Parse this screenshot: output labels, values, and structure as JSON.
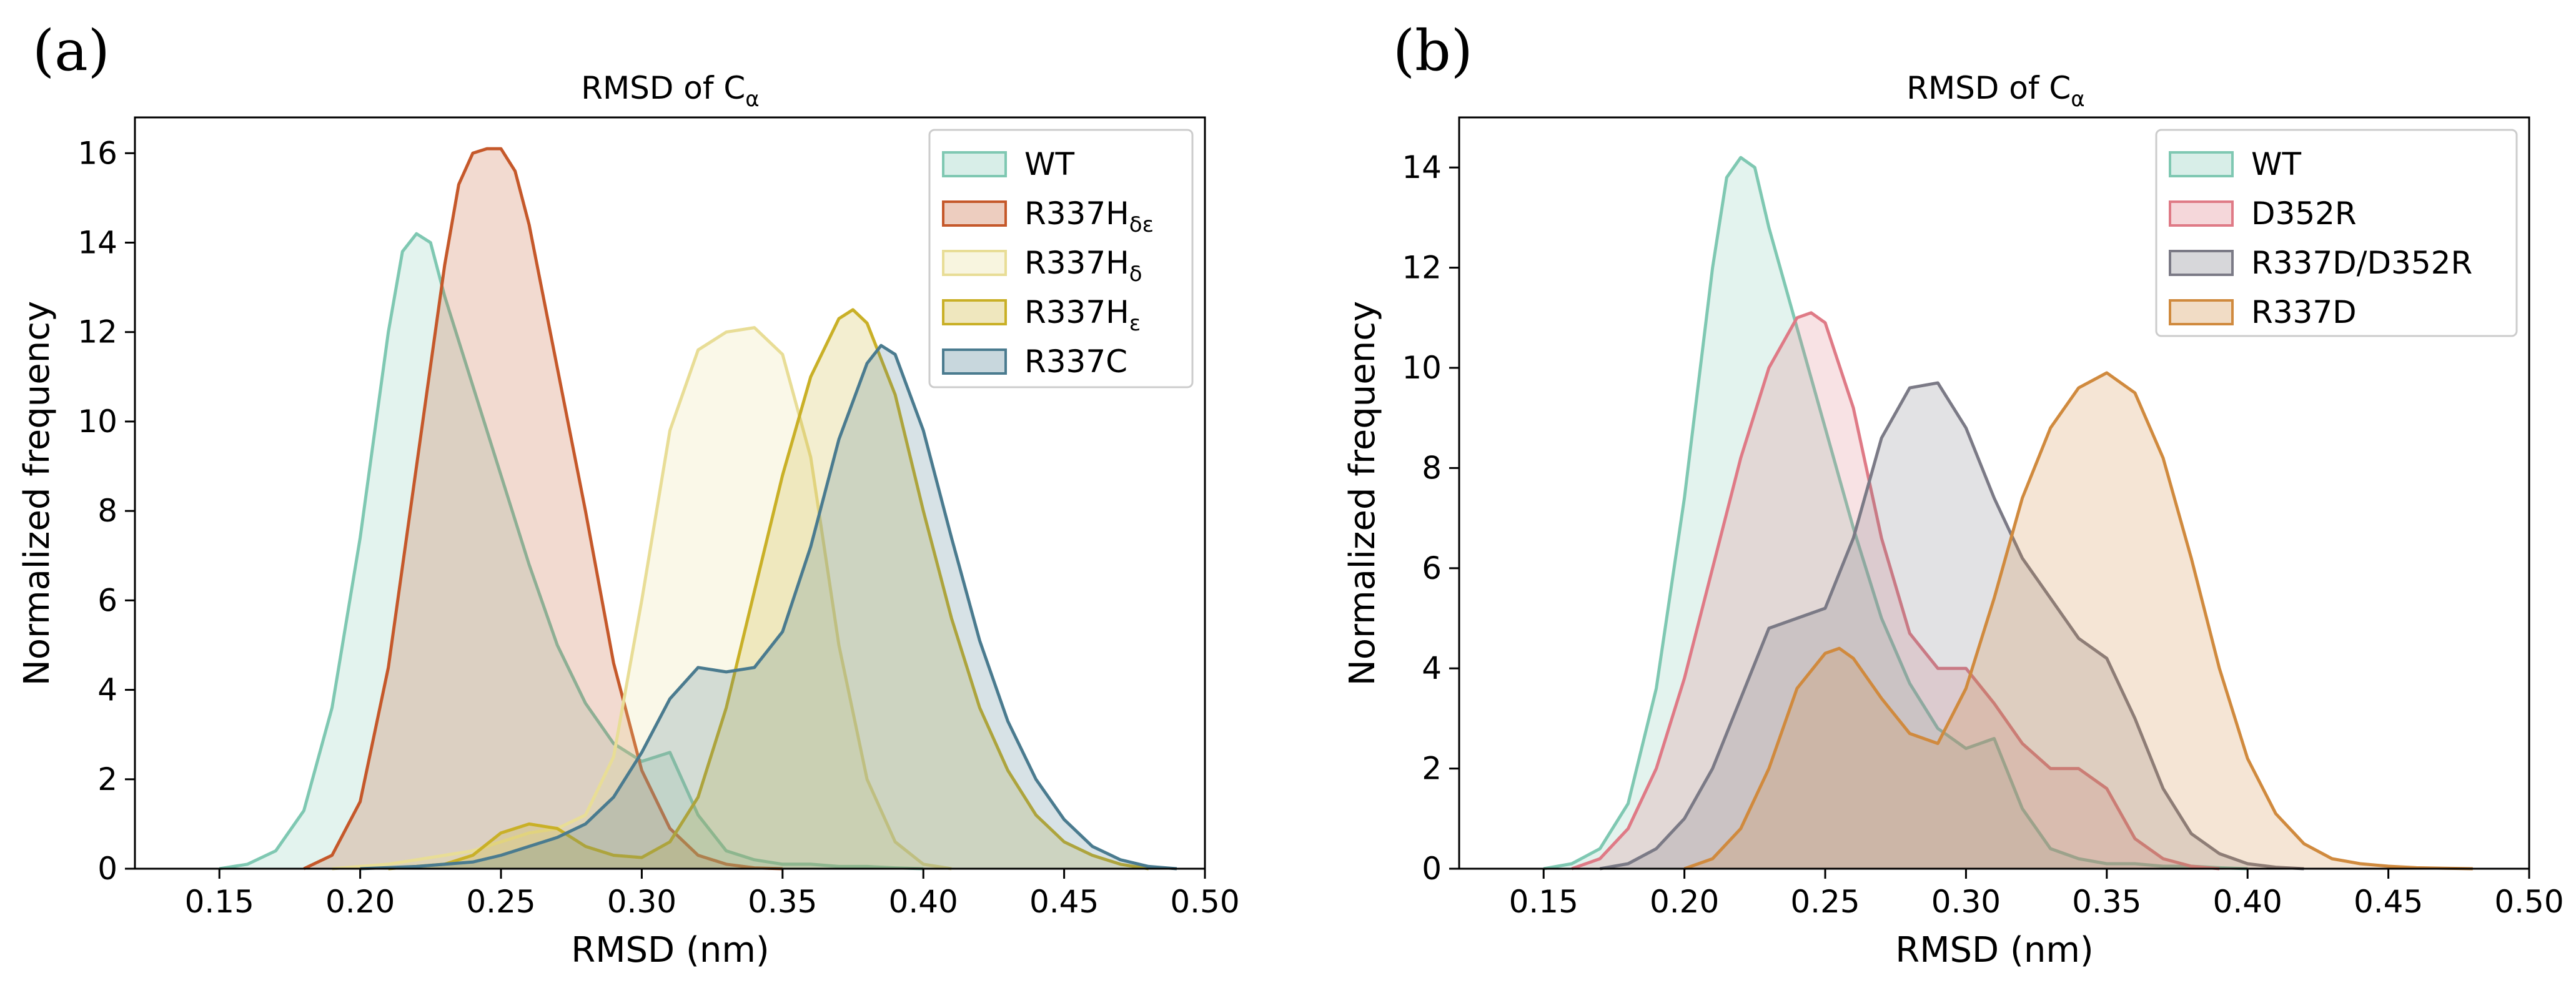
{
  "figure": {
    "panels": [
      "(a)",
      "(b)"
    ]
  },
  "chart_data": [
    {
      "type": "area",
      "panel_label": "(a)",
      "title": "RMSD of C",
      "title_sub": "α",
      "xlabel": "RMSD (nm)",
      "ylabel": "Normalized frequency",
      "xlim": [
        0.12,
        0.5
      ],
      "ylim": [
        0,
        16.8
      ],
      "x_ticks": [
        0.15,
        0.2,
        0.25,
        0.3,
        0.35,
        0.4,
        0.45,
        0.5
      ],
      "x_tick_labels": [
        "0.15",
        "0.20",
        "0.25",
        "0.30",
        "0.35",
        "0.40",
        "0.45",
        "0.50"
      ],
      "y_ticks": [
        0,
        2,
        4,
        6,
        8,
        10,
        12,
        14,
        16
      ],
      "y_tick_labels": [
        "0",
        "2",
        "4",
        "6",
        "8",
        "10",
        "12",
        "14",
        "16"
      ],
      "grid": false,
      "legend_position": "top-right",
      "series": [
        {
          "name": "WT",
          "sub": "",
          "color": "#7fc8b2",
          "x": [
            0.15,
            0.16,
            0.17,
            0.18,
            0.19,
            0.2,
            0.21,
            0.215,
            0.22,
            0.225,
            0.23,
            0.24,
            0.25,
            0.26,
            0.27,
            0.28,
            0.29,
            0.3,
            0.31,
            0.32,
            0.33,
            0.34,
            0.35,
            0.36,
            0.37,
            0.38,
            0.39,
            0.4
          ],
          "y": [
            0,
            0.1,
            0.4,
            1.3,
            3.6,
            7.4,
            12.0,
            13.8,
            14.2,
            14.0,
            12.8,
            10.8,
            8.8,
            6.8,
            5.0,
            3.7,
            2.8,
            2.4,
            2.6,
            1.2,
            0.4,
            0.2,
            0.1,
            0.1,
            0.05,
            0.05,
            0.02,
            0
          ]
        },
        {
          "name": "R337H",
          "sub": "δε",
          "color": "#c5582a",
          "x": [
            0.18,
            0.19,
            0.2,
            0.21,
            0.22,
            0.23,
            0.235,
            0.24,
            0.245,
            0.25,
            0.255,
            0.26,
            0.27,
            0.28,
            0.29,
            0.3,
            0.31,
            0.32,
            0.33,
            0.34,
            0.35
          ],
          "y": [
            0,
            0.3,
            1.5,
            4.5,
            9.0,
            13.5,
            15.3,
            16.0,
            16.1,
            16.1,
            15.6,
            14.4,
            11.2,
            8.0,
            4.6,
            2.2,
            0.9,
            0.3,
            0.1,
            0.02,
            0
          ]
        },
        {
          "name": "R337H",
          "sub": "δ",
          "color": "#e8dd96",
          "x": [
            0.19,
            0.2,
            0.21,
            0.22,
            0.23,
            0.24,
            0.25,
            0.26,
            0.27,
            0.28,
            0.29,
            0.3,
            0.31,
            0.32,
            0.33,
            0.34,
            0.35,
            0.36,
            0.37,
            0.38,
            0.39,
            0.4,
            0.41
          ],
          "y": [
            0,
            0.05,
            0.1,
            0.2,
            0.3,
            0.4,
            0.6,
            0.8,
            0.9,
            1.2,
            2.5,
            6.0,
            9.8,
            11.6,
            12.0,
            12.1,
            11.5,
            9.2,
            5.0,
            2.0,
            0.6,
            0.1,
            0
          ]
        },
        {
          "name": "R337H",
          "sub": "ε",
          "color": "#c9b027",
          "x": [
            0.21,
            0.22,
            0.23,
            0.24,
            0.25,
            0.26,
            0.27,
            0.28,
            0.29,
            0.3,
            0.31,
            0.32,
            0.33,
            0.34,
            0.35,
            0.36,
            0.37,
            0.375,
            0.38,
            0.39,
            0.4,
            0.41,
            0.42,
            0.43,
            0.44,
            0.45,
            0.46,
            0.47,
            0.48
          ],
          "y": [
            0,
            0.05,
            0.1,
            0.3,
            0.8,
            1.0,
            0.9,
            0.5,
            0.3,
            0.25,
            0.6,
            1.6,
            3.6,
            6.2,
            8.8,
            11.0,
            12.3,
            12.5,
            12.2,
            10.6,
            8.0,
            5.6,
            3.6,
            2.2,
            1.2,
            0.6,
            0.3,
            0.1,
            0
          ]
        },
        {
          "name": "R337C",
          "sub": "",
          "color": "#4a7b8f",
          "x": [
            0.2,
            0.22,
            0.24,
            0.25,
            0.26,
            0.27,
            0.28,
            0.29,
            0.3,
            0.31,
            0.32,
            0.33,
            0.34,
            0.35,
            0.36,
            0.37,
            0.38,
            0.385,
            0.39,
            0.4,
            0.41,
            0.42,
            0.43,
            0.44,
            0.45,
            0.46,
            0.47,
            0.48,
            0.49
          ],
          "y": [
            0,
            0.05,
            0.15,
            0.3,
            0.5,
            0.7,
            1.0,
            1.6,
            2.6,
            3.8,
            4.5,
            4.4,
            4.5,
            5.3,
            7.2,
            9.6,
            11.3,
            11.7,
            11.5,
            9.8,
            7.4,
            5.1,
            3.3,
            2.0,
            1.1,
            0.5,
            0.2,
            0.05,
            0
          ]
        }
      ]
    },
    {
      "type": "area",
      "panel_label": "(b)",
      "title": "RMSD of C",
      "title_sub": "α",
      "xlabel": "RMSD (nm)",
      "ylabel": "Normalized frequency",
      "xlim": [
        0.12,
        0.5
      ],
      "ylim": [
        0,
        15
      ],
      "x_ticks": [
        0.15,
        0.2,
        0.25,
        0.3,
        0.35,
        0.4,
        0.45,
        0.5
      ],
      "x_tick_labels": [
        "0.15",
        "0.20",
        "0.25",
        "0.30",
        "0.35",
        "0.40",
        "0.45",
        "0.50"
      ],
      "y_ticks": [
        0,
        2,
        4,
        6,
        8,
        10,
        12,
        14
      ],
      "y_tick_labels": [
        "0",
        "2",
        "4",
        "6",
        "8",
        "10",
        "12",
        "14"
      ],
      "grid": false,
      "legend_position": "top-right",
      "series": [
        {
          "name": "WT",
          "sub": "",
          "color": "#7fc8b2",
          "x": [
            0.15,
            0.16,
            0.17,
            0.18,
            0.19,
            0.2,
            0.21,
            0.215,
            0.22,
            0.225,
            0.23,
            0.24,
            0.25,
            0.26,
            0.27,
            0.28,
            0.29,
            0.3,
            0.31,
            0.32,
            0.33,
            0.34,
            0.35,
            0.36,
            0.37,
            0.38,
            0.39,
            0.4
          ],
          "y": [
            0,
            0.1,
            0.4,
            1.3,
            3.6,
            7.4,
            12.0,
            13.8,
            14.2,
            14.0,
            12.8,
            10.8,
            8.8,
            6.8,
            5.0,
            3.7,
            2.8,
            2.4,
            2.6,
            1.2,
            0.4,
            0.2,
            0.1,
            0.1,
            0.05,
            0.05,
            0.02,
            0
          ]
        },
        {
          "name": "D352R",
          "sub": "",
          "color": "#df7a86",
          "x": [
            0.16,
            0.17,
            0.18,
            0.19,
            0.2,
            0.21,
            0.22,
            0.23,
            0.24,
            0.245,
            0.25,
            0.26,
            0.27,
            0.28,
            0.29,
            0.3,
            0.31,
            0.32,
            0.33,
            0.34,
            0.35,
            0.36,
            0.37,
            0.38,
            0.39
          ],
          "y": [
            0,
            0.2,
            0.8,
            2.0,
            3.8,
            6.0,
            8.2,
            10.0,
            11.0,
            11.1,
            10.9,
            9.2,
            6.6,
            4.7,
            4.0,
            4.0,
            3.3,
            2.5,
            2.0,
            2.0,
            1.6,
            0.6,
            0.2,
            0.05,
            0
          ]
        },
        {
          "name": "R337D/D352R",
          "sub": "",
          "color": "#7b7a86",
          "x": [
            0.17,
            0.18,
            0.19,
            0.2,
            0.21,
            0.22,
            0.23,
            0.24,
            0.25,
            0.26,
            0.27,
            0.28,
            0.29,
            0.3,
            0.31,
            0.32,
            0.33,
            0.34,
            0.35,
            0.36,
            0.37,
            0.38,
            0.39,
            0.4,
            0.41,
            0.42
          ],
          "y": [
            0,
            0.1,
            0.4,
            1.0,
            2.0,
            3.4,
            4.8,
            5.0,
            5.2,
            6.6,
            8.6,
            9.6,
            9.7,
            8.8,
            7.4,
            6.2,
            5.4,
            4.6,
            4.2,
            3.0,
            1.6,
            0.7,
            0.3,
            0.1,
            0.03,
            0
          ]
        },
        {
          "name": "R337D",
          "sub": "",
          "color": "#d08a3e",
          "x": [
            0.2,
            0.21,
            0.22,
            0.23,
            0.24,
            0.25,
            0.255,
            0.26,
            0.27,
            0.28,
            0.29,
            0.3,
            0.31,
            0.32,
            0.33,
            0.34,
            0.35,
            0.36,
            0.37,
            0.38,
            0.39,
            0.4,
            0.41,
            0.42,
            0.43,
            0.44,
            0.45,
            0.46,
            0.47,
            0.48
          ],
          "y": [
            0,
            0.2,
            0.8,
            2.0,
            3.6,
            4.3,
            4.4,
            4.2,
            3.4,
            2.7,
            2.5,
            3.6,
            5.4,
            7.4,
            8.8,
            9.6,
            9.9,
            9.5,
            8.2,
            6.2,
            4.0,
            2.2,
            1.1,
            0.5,
            0.2,
            0.1,
            0.05,
            0.02,
            0.01,
            0
          ]
        }
      ]
    }
  ]
}
